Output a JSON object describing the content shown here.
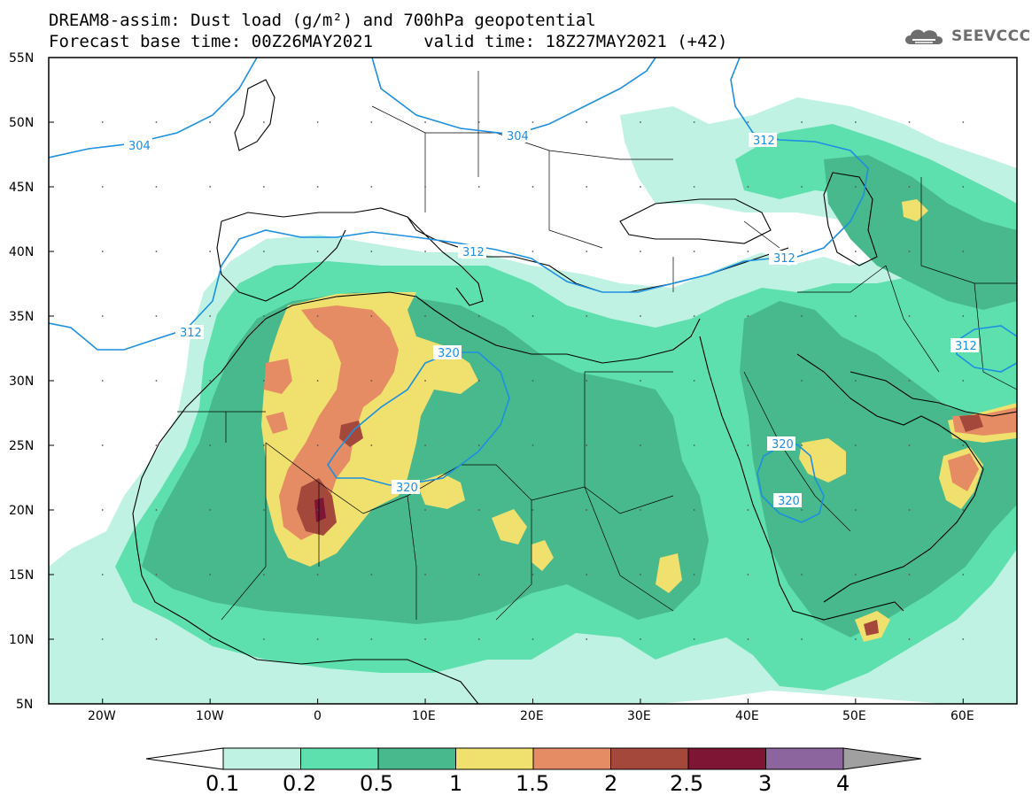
{
  "title": {
    "line1": "DREAM8-assim: Dust load (g/m²) and 700hPa geopotential",
    "line2": "Forecast base time: 00Z26MAY2021     valid time: 18Z27MAY2021 (+42)"
  },
  "logo": {
    "text": "SEEVCCC",
    "icon": "cloud-icon"
  },
  "map": {
    "lon_ticks": [
      "20W",
      "10W",
      "0",
      "10E",
      "20E",
      "30E",
      "40E",
      "50E",
      "60E"
    ],
    "lat_ticks": [
      "55N",
      "50N",
      "45N",
      "40N",
      "35N",
      "30N",
      "25N",
      "20N",
      "15N",
      "10N",
      "5N"
    ],
    "contour_labels": [
      "304",
      "304",
      "312",
      "312",
      "312",
      "312",
      "312",
      "320",
      "320",
      "320",
      "320"
    ]
  },
  "legend": {
    "labels": [
      "0.1",
      "0.2",
      "0.5",
      "1",
      "1.5",
      "2",
      "2.5",
      "3",
      "4"
    ],
    "colors": [
      "#bff2e3",
      "#5ee0ae",
      "#47b98c",
      "#f0e06e",
      "#e58c64",
      "#a5483c",
      "#7e1535",
      "#8c649e"
    ],
    "under_color": "#ffffff",
    "over_color": "#a0a0a0"
  },
  "colors": {
    "dust_low": "#bff2e3",
    "dust_mid": "#5ee0ae",
    "dust_high": "#47b98c",
    "dust_yellow": "#f0e06e",
    "dust_orange": "#e58c64",
    "dust_brown": "#a5483c",
    "dust_maroon": "#7e1535",
    "contour": "#1d8fe1"
  }
}
